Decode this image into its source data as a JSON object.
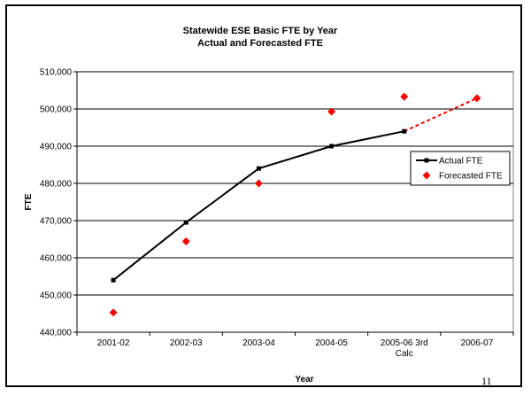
{
  "chart_data": {
    "type": "line",
    "title": "Statewide ESE Basic FTE by Year",
    "subtitle": "Actual and Forecasted FTE",
    "xlabel": "Year",
    "ylabel": "FTE",
    "categories": [
      "2001-02",
      "2002-03",
      "2003-04",
      "2004-05",
      "2005-06 3rd Calc",
      "2006-07"
    ],
    "category_lines": [
      [
        "2001-02"
      ],
      [
        "2002-03"
      ],
      [
        "2003-04"
      ],
      [
        "2004-05"
      ],
      [
        "2005-06 3rd",
        "Calc"
      ],
      [
        "2006-07"
      ]
    ],
    "ylim": [
      440000,
      510000
    ],
    "yticks": [
      440000,
      450000,
      460000,
      470000,
      480000,
      490000,
      500000,
      510000
    ],
    "ytick_labels": [
      "440,000",
      "450,000",
      "460,000",
      "470,000",
      "480,000",
      "490,000",
      "500,000",
      "510,000"
    ],
    "grid": true,
    "legend_position": "right",
    "series": [
      {
        "name": "Actual FTE",
        "values": [
          454000,
          469500,
          484000,
          490000,
          494000,
          null
        ],
        "color": "#000000",
        "marker": "square"
      },
      {
        "name": "Forecasted FTE",
        "values": [
          445300,
          464400,
          480000,
          499300,
          503300,
          502900
        ],
        "color": "#ff0000",
        "marker": "diamond"
      }
    ],
    "projection": {
      "from_index": 4,
      "to_series": 1,
      "to_index": 5,
      "color": "#ff0000",
      "style": "dashed"
    }
  },
  "slide": {
    "number": "11"
  }
}
